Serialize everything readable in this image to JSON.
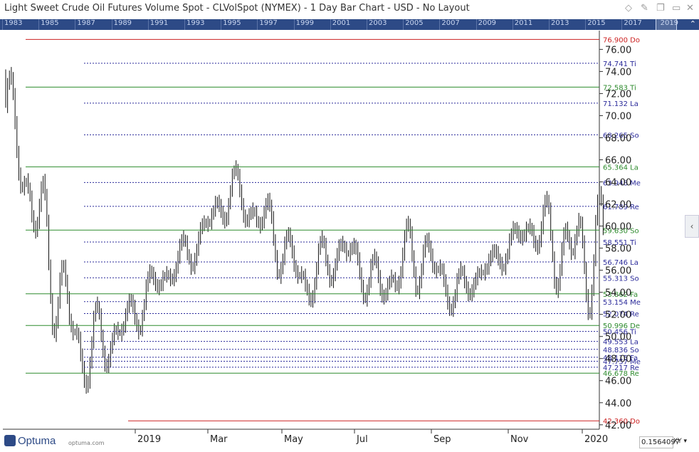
{
  "window": {
    "title": "Light Sweet Crude Oil Futures Volume Spot - CLVolSpot (NYMEX) - 1 Day Bar Chart - USD - No Layout",
    "icons": [
      "diamond-icon",
      "pin-icon",
      "restore-icon",
      "close-icon"
    ]
  },
  "navigator": {
    "years": [
      "1983",
      "1985",
      "1987",
      "1989",
      "1991",
      "1993",
      "1995",
      "1997",
      "1999",
      "2001",
      "2003",
      "2005",
      "2007",
      "2009",
      "2011",
      "2013",
      "2015",
      "2017",
      "2019"
    ]
  },
  "footer": {
    "brand": "Optuma",
    "url": "optuma.com",
    "readout": "0.1564097",
    "xy_label": "XY"
  },
  "chart_data": {
    "type": "bar",
    "title": "Light Sweet Crude Oil Futures Volume Spot - CLVolSpot (NYMEX) - 1 Day Bar Chart - USD - No Layout",
    "x_ticks": [
      "2019",
      "Mar",
      "May",
      "Jul",
      "Sep",
      "Nov",
      "2020"
    ],
    "y_ticks": [
      42,
      44,
      46,
      48,
      50,
      52,
      54,
      56,
      58,
      60,
      62,
      64,
      66,
      68,
      70,
      72,
      74,
      76
    ],
    "ylim": [
      41.6,
      77.7
    ],
    "grid": false,
    "colors": {
      "bars": "#111111",
      "green_level": "#2e8b2e",
      "red_level": "#cc2222",
      "blue_level": "#2a2a9a"
    },
    "price_series_monthly_approx": [
      {
        "date": "2018-10",
        "high": 76.9,
        "low": 65.0
      },
      {
        "date": "2018-11",
        "high": 67.0,
        "low": 50.5
      },
      {
        "date": "2018-12",
        "high": 54.5,
        "low": 42.36
      },
      {
        "date": "2019-01",
        "high": 54.0,
        "low": 46.5
      },
      {
        "date": "2019-02",
        "high": 57.5,
        "low": 52.0
      },
      {
        "date": "2019-03",
        "high": 60.5,
        "low": 55.5
      },
      {
        "date": "2019-04",
        "high": 66.6,
        "low": 60.0
      },
      {
        "date": "2019-05",
        "high": 64.0,
        "low": 56.0
      },
      {
        "date": "2019-06",
        "high": 59.0,
        "low": 50.6
      },
      {
        "date": "2019-07",
        "high": 61.0,
        "low": 55.0
      },
      {
        "date": "2019-08",
        "high": 58.0,
        "low": 50.6
      },
      {
        "date": "2019-09",
        "high": 63.4,
        "low": 52.5
      },
      {
        "date": "2019-10",
        "high": 56.5,
        "low": 51.0
      },
      {
        "date": "2019-11",
        "high": 58.5,
        "low": 55.0
      },
      {
        "date": "2019-12",
        "high": 62.5,
        "low": 57.5
      },
      {
        "date": "2020-01",
        "high": 65.7,
        "low": 49.5
      }
    ],
    "levels": [
      {
        "value": 76.9,
        "label": "76.900",
        "tag": "Do",
        "color": "red",
        "style": "solid"
      },
      {
        "value": 74.741,
        "label": "74.741",
        "tag": "Ti",
        "color": "blue",
        "style": "dotted"
      },
      {
        "value": 72.583,
        "label": "72.583",
        "tag": "Ti",
        "color": "green",
        "style": "solid"
      },
      {
        "value": 71.132,
        "label": "71.132",
        "tag": "La",
        "color": "blue",
        "style": "dotted"
      },
      {
        "value": 68.265,
        "label": "68.265",
        "tag": "So",
        "color": "blue",
        "style": "dotted"
      },
      {
        "value": 65.364,
        "label": "65.364",
        "tag": "La",
        "color": "green",
        "style": "solid"
      },
      {
        "value": 63.948,
        "label": "63.948",
        "tag": "Me",
        "color": "blue",
        "style": "dotted"
      },
      {
        "value": 61.789,
        "label": "61.789",
        "tag": "Re",
        "color": "blue",
        "style": "dotted"
      },
      {
        "value": 59.63,
        "label": "59.630",
        "tag": "So",
        "color": "green",
        "style": "solid"
      },
      {
        "value": 58.551,
        "label": "58.551",
        "tag": "Ti",
        "color": "blue",
        "style": "dotted"
      },
      {
        "value": 56.746,
        "label": "56.746",
        "tag": "La",
        "color": "blue",
        "style": "dotted"
      },
      {
        "value": 55.313,
        "label": "55.313",
        "tag": "So",
        "color": "blue",
        "style": "dotted"
      },
      {
        "value": 53.862,
        "label": "53.862",
        "tag": "Fa",
        "color": "green",
        "style": "solid"
      },
      {
        "value": 53.154,
        "label": "53.154",
        "tag": "Me",
        "color": "blue",
        "style": "dotted"
      },
      {
        "value": 52.074,
        "label": "52.074",
        "tag": "Re",
        "color": "blue",
        "style": "dotted"
      },
      {
        "value": 50.996,
        "label": "50.996",
        "tag": "De",
        "color": "green",
        "style": "solid"
      },
      {
        "value": 50.456,
        "label": "50.456",
        "tag": "Ti",
        "color": "blue",
        "style": "dotted"
      },
      {
        "value": 49.553,
        "label": "49.553",
        "tag": "La",
        "color": "blue",
        "style": "dotted"
      },
      {
        "value": 48.836,
        "label": "48.836",
        "tag": "So",
        "color": "blue",
        "style": "dotted"
      },
      {
        "value": 48.115,
        "label": "48.115",
        "tag": "Fa",
        "color": "blue",
        "style": "dotted"
      },
      {
        "value": 47.757,
        "label": "47.757",
        "tag": "Me",
        "color": "blue",
        "style": "dotted"
      },
      {
        "value": 47.217,
        "label": "47.217",
        "tag": "Re",
        "color": "blue",
        "style": "dotted"
      },
      {
        "value": 46.678,
        "label": "46.678",
        "tag": "Re",
        "color": "green",
        "style": "solid"
      },
      {
        "value": 42.36,
        "label": "42.360",
        "tag": "Do",
        "color": "red",
        "style": "solid"
      }
    ]
  }
}
